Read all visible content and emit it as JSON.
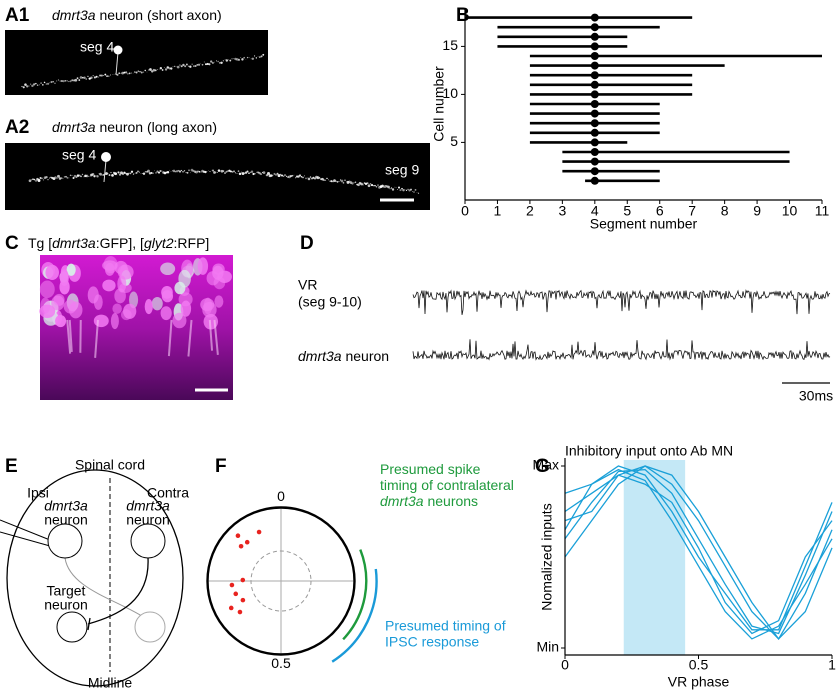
{
  "panels": {
    "A1": {
      "label": "A1",
      "title": [
        {
          "text": "dmrt3a",
          "italic": true
        },
        {
          "text": " neuron (short axon)"
        }
      ],
      "annotations": [
        "seg 4"
      ]
    },
    "A2": {
      "label": "A2",
      "title": [
        {
          "text": "dmrt3a",
          "italic": true
        },
        {
          "text": " neuron (long axon)"
        }
      ],
      "annotations": [
        "seg 4",
        "seg 9"
      ]
    },
    "B": {
      "label": "B",
      "type": "range",
      "xlabel": "Segment number",
      "ylabel": "Cell number",
      "xlim": [
        0,
        11
      ],
      "xticks": [
        0,
        1,
        2,
        3,
        4,
        5,
        6,
        7,
        8,
        9,
        10,
        11
      ],
      "ylim": [
        -1,
        19
      ],
      "yticks": [
        5,
        10,
        15
      ],
      "cells": [
        1,
        2,
        3,
        4,
        5,
        6,
        7,
        8,
        9,
        10,
        11,
        12,
        13,
        14,
        15,
        16,
        17,
        18
      ],
      "start": [
        3.7,
        3,
        3,
        3,
        2,
        2,
        2,
        2,
        2,
        2,
        2,
        2,
        2,
        2,
        1,
        1,
        1,
        0
      ],
      "end": [
        6,
        6,
        10,
        10,
        5,
        6,
        6,
        6,
        6,
        7,
        7,
        7,
        8,
        11,
        5,
        5,
        6,
        7
      ],
      "soma": [
        4,
        4,
        4,
        4,
        4,
        4,
        4,
        4,
        4,
        4,
        4,
        4,
        4,
        4,
        4,
        4,
        4,
        4
      ]
    },
    "C": {
      "label": "C",
      "title": [
        {
          "text": "Tg ["
        },
        {
          "text": "dmrt3a",
          "italic": true
        },
        {
          "text": ":GFP], ["
        },
        {
          "text": "glyt2",
          "italic": true
        },
        {
          "text": ":RFP]"
        }
      ]
    },
    "D": {
      "label": "D",
      "trace1_label": [
        "VR",
        "(seg 9-10)"
      ],
      "trace2_label": [
        {
          "text": "dmrt3a",
          "italic": true
        },
        {
          "text": " neuron"
        }
      ],
      "scale": "30ms"
    },
    "E": {
      "label": "E",
      "title": "Spinal cord",
      "ipsi": "Ipsi",
      "contra": "Contra",
      "left_neuron": [
        "dmrt3a",
        "neuron"
      ],
      "right_neuron": [
        "dmrt3a",
        "neuron"
      ],
      "target": [
        "Target",
        "neuron"
      ],
      "midline": "Midline"
    },
    "F": {
      "label": "F",
      "type": "polar",
      "top": "0",
      "bottom": "0.5",
      "dot_color": "#e8231f",
      "phase": [
        0.933,
        0.879,
        0.886,
        0.864,
        0.737,
        0.754,
        0.706,
        0.676,
        0.671,
        0.647
      ],
      "radius": [
        0.73,
        0.85,
        0.7,
        0.72,
        0.67,
        0.52,
        0.64,
        0.58,
        0.77,
        0.7
      ],
      "green_arc": [
        0.19,
        0.37
      ],
      "blue_arc": [
        0.23,
        0.41
      ],
      "green_text": [
        {
          "text": "Presumed spike"
        },
        {
          "text": "timing of contralateral"
        },
        {
          "text": "dmrt3a",
          "italic": true
        },
        {
          "text": " neurons"
        }
      ],
      "blue_text": [
        "Presumed timing of",
        "IPSC response"
      ]
    },
    "G": {
      "label": "G",
      "type": "line",
      "title": "Inhibitory input onto Ab MN",
      "xlabel": "VR phase",
      "ylabel": "Nomalized inputs",
      "xlim": [
        0,
        1
      ],
      "xticks": [
        0,
        0.5,
        1
      ],
      "ylim": [
        0,
        1
      ],
      "yticks": [
        {
          "value": 1,
          "label": "Max"
        },
        {
          "value": 0,
          "label": "Min"
        }
      ],
      "shaded": [
        0.22,
        0.45
      ],
      "color": "#1aa0d8",
      "x": [
        0,
        0.1,
        0.2,
        0.3,
        0.4,
        0.5,
        0.6,
        0.7,
        0.8,
        0.9,
        1
      ],
      "series": [
        {
          "values": [
            0.75,
            0.85,
            0.95,
            1.0,
            0.9,
            0.7,
            0.45,
            0.2,
            0.05,
            0.3,
            0.65
          ]
        },
        {
          "values": [
            0.6,
            0.8,
            0.97,
            0.98,
            0.85,
            0.6,
            0.35,
            0.12,
            0.08,
            0.4,
            0.75
          ]
        },
        {
          "values": [
            0.85,
            0.9,
            1.0,
            0.95,
            0.75,
            0.5,
            0.3,
            0.1,
            0.1,
            0.45,
            0.8
          ]
        },
        {
          "values": [
            0.5,
            0.7,
            0.9,
            1.0,
            0.95,
            0.75,
            0.5,
            0.25,
            0.05,
            0.2,
            0.55
          ]
        },
        {
          "values": [
            0.7,
            0.75,
            0.95,
            0.9,
            0.8,
            0.55,
            0.25,
            0.08,
            0.15,
            0.5,
            0.7
          ]
        },
        {
          "values": [
            0.65,
            0.9,
            0.98,
            0.92,
            0.7,
            0.45,
            0.2,
            0.05,
            0.12,
            0.35,
            0.6
          ]
        }
      ]
    }
  }
}
